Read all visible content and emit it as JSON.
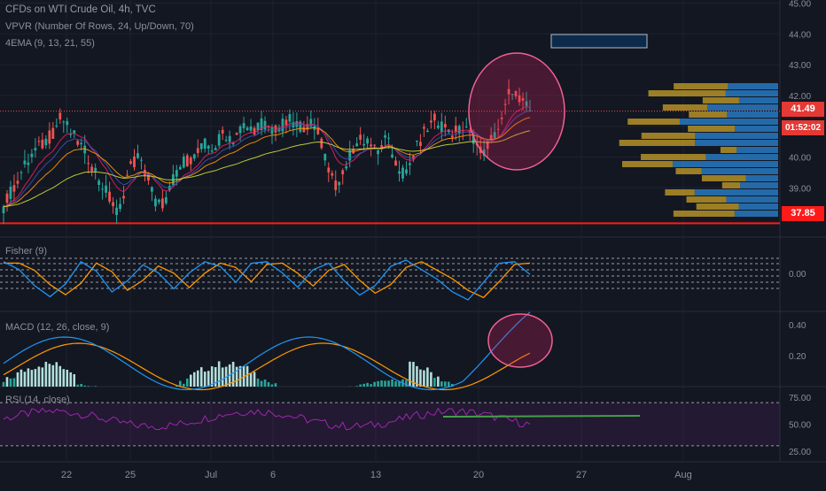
{
  "legend": {
    "title": "CFDs on WTI Crude Oil, 4h, TVC",
    "vpvr": "VPVR (Number Of Rows, 24, Up/Down, 70)",
    "ema": "4EMA (9, 13, 21, 55)",
    "fisher": "Fisher (9)",
    "macd": "MACD (12, 26, close, 9)",
    "rsi": "RSI (14, close)"
  },
  "price_tags": {
    "last": "41.49",
    "countdown": "01:52:02",
    "level": "37.85"
  },
  "colors": {
    "background": "#131722",
    "up": "#26a69a",
    "down": "#ef5350",
    "level_line": "#ff1a1a",
    "fisher": "#2196f3",
    "trigger": "#ff9800",
    "rsi": "#9c27b0",
    "vp_up": "#2879c1",
    "vp_down": "#c9a227"
  },
  "chart_data": [
    {
      "type": "candlestick",
      "title": "CFDs on WTI Crude Oil, 4h, TVC",
      "x_ticks": [
        "22",
        "25",
        "Jul",
        "6",
        "13",
        "20",
        "27",
        "Aug"
      ],
      "y_ticks": [
        "39.00",
        "40.00",
        "41.00",
        "42.00",
        "43.00",
        "44.00",
        "45.00"
      ],
      "ylim": [
        37.4,
        45.1
      ],
      "ohlc_path": [
        [
          38.1,
          38.6,
          37.9,
          38.4
        ],
        [
          38.4,
          39.2,
          38.2,
          39.0
        ],
        [
          39.0,
          39.8,
          38.8,
          39.6
        ],
        [
          39.6,
          40.3,
          39.4,
          40.1
        ],
        [
          40.1,
          40.6,
          39.8,
          40.4
        ],
        [
          40.4,
          40.9,
          40.1,
          40.7
        ],
        [
          40.7,
          41.6,
          40.5,
          41.3
        ],
        [
          41.3,
          41.5,
          40.6,
          40.8
        ],
        [
          40.8,
          41.0,
          40.2,
          40.4
        ],
        [
          40.4,
          40.6,
          39.7,
          39.9
        ],
        [
          39.9,
          40.1,
          39.1,
          39.3
        ],
        [
          39.3,
          39.5,
          38.5,
          38.7
        ],
        [
          38.7,
          38.9,
          37.9,
          38.1
        ],
        [
          38.1,
          39.6,
          38.0,
          39.5
        ],
        [
          39.5,
          40.2,
          39.3,
          40.0
        ],
        [
          40.0,
          40.3,
          39.2,
          39.4
        ],
        [
          39.4,
          39.6,
          38.2,
          38.4
        ],
        [
          38.4,
          38.7,
          37.8,
          38.6
        ],
        [
          38.6,
          39.6,
          38.5,
          39.5
        ],
        [
          39.5,
          40.1,
          39.4,
          39.9
        ],
        [
          39.9,
          40.2,
          39.6,
          40.0
        ],
        [
          40.0,
          40.6,
          39.8,
          40.4
        ],
        [
          40.4,
          40.7,
          40.1,
          40.3
        ],
        [
          40.3,
          40.9,
          40.2,
          40.8
        ],
        [
          40.8,
          41.0,
          40.4,
          40.6
        ],
        [
          40.6,
          41.2,
          40.5,
          41.0
        ],
        [
          41.0,
          41.3,
          40.7,
          40.9
        ],
        [
          40.9,
          41.2,
          40.6,
          41.1
        ],
        [
          41.1,
          41.3,
          40.8,
          40.9
        ],
        [
          40.9,
          41.2,
          40.7,
          41.0
        ],
        [
          41.0,
          41.4,
          40.8,
          41.2
        ],
        [
          41.2,
          41.4,
          40.9,
          41.0
        ],
        [
          41.0,
          41.3,
          40.8,
          41.1
        ],
        [
          41.1,
          41.2,
          40.6,
          40.7
        ],
        [
          40.7,
          40.9,
          39.5,
          39.6
        ],
        [
          39.6,
          39.8,
          38.7,
          38.9
        ],
        [
          38.9,
          40.1,
          38.8,
          40.0
        ],
        [
          40.0,
          40.6,
          39.9,
          40.5
        ],
        [
          40.5,
          40.9,
          40.3,
          40.6
        ],
        [
          40.6,
          40.8,
          39.9,
          40.1
        ],
        [
          40.1,
          40.7,
          40.0,
          40.6
        ],
        [
          40.6,
          40.8,
          39.7,
          39.8
        ],
        [
          39.8,
          40.0,
          39.2,
          39.4
        ],
        [
          39.4,
          40.3,
          39.3,
          40.2
        ],
        [
          40.2,
          40.9,
          40.1,
          40.8
        ],
        [
          40.8,
          41.4,
          40.6,
          41.2
        ],
        [
          41.2,
          41.4,
          40.8,
          41.0
        ],
        [
          41.0,
          41.2,
          40.6,
          40.8
        ],
        [
          40.8,
          41.1,
          40.5,
          40.9
        ],
        [
          40.9,
          41.1,
          40.5,
          40.7
        ],
        [
          40.7,
          41.0,
          39.9,
          40.1
        ],
        [
          40.1,
          40.8,
          40.0,
          40.6
        ],
        [
          40.6,
          41.3,
          40.5,
          41.1
        ],
        [
          41.1,
          42.5,
          41.0,
          42.3
        ],
        [
          42.3,
          42.4,
          41.6,
          41.8
        ],
        [
          41.8,
          42.0,
          41.3,
          41.5
        ]
      ]
    },
    {
      "type": "line",
      "title": "Fisher (9)",
      "series": [
        {
          "values": [
            0.9,
            0.4,
            -0.6,
            -1.3,
            -0.5,
            0.9,
            0.3,
            -1.0,
            -0.3,
            0.7,
            0.2,
            -0.8,
            0.2,
            0.9,
            0.6,
            -0.4,
            0.8,
            0.9,
            0.2,
            -0.7,
            0.4,
            0.8,
            -0.3,
            -1.2,
            -0.6,
            0.6,
            1.0,
            0.4,
            -0.2,
            -1.0,
            -1.5,
            -0.4,
            0.8,
            0.9,
            0.1
          ]
        }
      ],
      "y_ticks": [
        "0.00"
      ]
    },
    {
      "type": "bar",
      "title": "MACD (12, 26, close, 9)",
      "y_ticks": [
        "0.20",
        "0.40"
      ]
    },
    {
      "type": "line",
      "title": "RSI (14, close)",
      "y_ticks": [
        "25.00",
        "50.00",
        "75.00"
      ],
      "ylim": [
        20,
        80
      ]
    }
  ]
}
